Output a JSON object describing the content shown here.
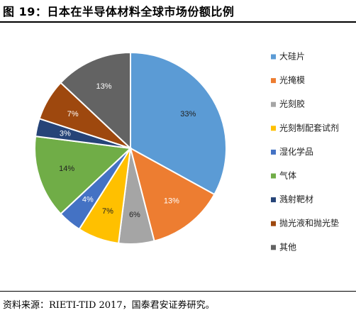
{
  "title": "图 19：日本在半导体材料全球市场份额比例",
  "source": "资料来源：RIETI-TID 2017，国泰君安证券研究。",
  "chart_data": {
    "type": "pie",
    "categories": [
      "大硅片",
      "光掩模",
      "光刻胶",
      "光刻制配套试剂",
      "湿化学品",
      "气体",
      "溅射靶材",
      "抛光液和抛光垫",
      "其他"
    ],
    "values": [
      33,
      13,
      6,
      7,
      4,
      14,
      3,
      7,
      13
    ],
    "labels": [
      "33%",
      "13%",
      "6%",
      "7%",
      "4%",
      "14%",
      "3%",
      "7%",
      "13%"
    ],
    "colors": [
      "#5B9BD5",
      "#ED7D31",
      "#A5A5A5",
      "#FFC000",
      "#4472C4",
      "#70AD47",
      "#264478",
      "#9E480E",
      "#636363"
    ],
    "label_colors": [
      "#222222",
      "#ffffff",
      "#222222",
      "#222222",
      "#ffffff",
      "#222222",
      "#ffffff",
      "#ffffff",
      "#ffffff"
    ],
    "start_angle": "12 o'clock",
    "direction": "clockwise",
    "legend": "right"
  }
}
